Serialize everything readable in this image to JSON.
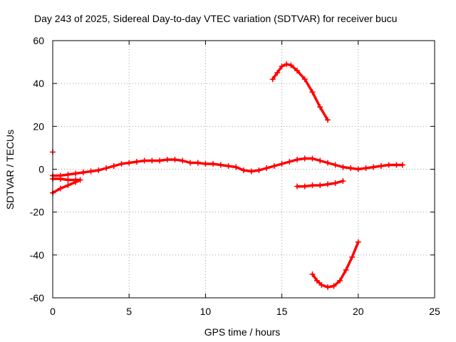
{
  "chart_data": {
    "type": "scatter",
    "title": "Day 243 of 2025, Sidereal Day-to-day VTEC variation (SDTVAR) for receiver bucu",
    "xlabel": "GPS time / hours",
    "ylabel": "SDTVAR / TECUs",
    "xlim": [
      0,
      25
    ],
    "ylim": [
      -60,
      60
    ],
    "xticks": [
      0,
      5,
      10,
      15,
      20,
      25
    ],
    "yticks": [
      -60,
      -40,
      -20,
      0,
      20,
      40,
      60
    ],
    "xtick_labels": [
      "0",
      "5",
      "10",
      "15",
      "20",
      "25"
    ],
    "ytick_labels": [
      "-60",
      "-40",
      "-20",
      "0",
      "20",
      "40",
      "60"
    ],
    "grid": true,
    "legend": "none",
    "marker_color": "#ff0000",
    "series": [
      {
        "name": "main band",
        "points": [
          [
            0.0,
            -3
          ],
          [
            0.5,
            -3
          ],
          [
            1.0,
            -2.5
          ],
          [
            1.5,
            -2
          ],
          [
            2.0,
            -1.5
          ],
          [
            2.5,
            -1
          ],
          [
            3.0,
            -0.5
          ],
          [
            3.5,
            0.5
          ],
          [
            4.0,
            1.5
          ],
          [
            4.5,
            2.5
          ],
          [
            5.0,
            3
          ],
          [
            5.5,
            3.5
          ],
          [
            6.0,
            4
          ],
          [
            6.5,
            4
          ],
          [
            7.0,
            4
          ],
          [
            7.5,
            4.5
          ],
          [
            8.0,
            4.5
          ],
          [
            8.5,
            4
          ],
          [
            9.0,
            3
          ],
          [
            9.5,
            3
          ],
          [
            10.0,
            2.5
          ],
          [
            10.5,
            2.5
          ],
          [
            11.0,
            2
          ],
          [
            11.5,
            1.5
          ],
          [
            12.0,
            1
          ],
          [
            12.5,
            -0.5
          ],
          [
            13.0,
            -1
          ],
          [
            13.5,
            -0.5
          ],
          [
            14.0,
            0.5
          ],
          [
            14.5,
            1.5
          ],
          [
            15.0,
            2.5
          ],
          [
            15.5,
            3.5
          ],
          [
            16.0,
            4.5
          ],
          [
            16.5,
            5
          ],
          [
            17.0,
            5
          ],
          [
            17.5,
            4
          ],
          [
            18.0,
            3
          ],
          [
            18.5,
            2
          ],
          [
            19.0,
            1
          ],
          [
            19.5,
            0.5
          ],
          [
            20.0,
            0
          ],
          [
            20.5,
            0.5
          ],
          [
            21.0,
            1
          ],
          [
            21.5,
            1.5
          ],
          [
            22.0,
            2
          ],
          [
            22.5,
            2
          ],
          [
            22.9,
            2
          ]
        ]
      },
      {
        "name": "early low branch",
        "points": [
          [
            0.0,
            -11
          ],
          [
            0.5,
            -9
          ],
          [
            1.0,
            -7.5
          ],
          [
            1.5,
            -6
          ],
          [
            1.8,
            -5
          ],
          [
            1.5,
            -5
          ],
          [
            1.0,
            -5
          ],
          [
            0.5,
            -4.5
          ],
          [
            0.0,
            -4.5
          ]
        ]
      },
      {
        "name": "isolated point",
        "points": [
          [
            0.0,
            8
          ]
        ]
      },
      {
        "name": "upper arc",
        "points": [
          [
            14.4,
            42
          ],
          [
            14.7,
            45
          ],
          [
            15.0,
            48
          ],
          [
            15.3,
            49
          ],
          [
            15.6,
            48.5
          ],
          [
            16.0,
            46
          ],
          [
            16.5,
            42
          ],
          [
            17.0,
            36
          ],
          [
            17.5,
            29
          ],
          [
            18.0,
            23
          ]
        ]
      },
      {
        "name": "middle segment",
        "points": [
          [
            16.0,
            -8
          ],
          [
            16.5,
            -8
          ],
          [
            17.0,
            -7.5
          ],
          [
            17.5,
            -7.5
          ],
          [
            18.0,
            -7
          ],
          [
            18.5,
            -6.5
          ],
          [
            19.0,
            -5.5
          ]
        ]
      },
      {
        "name": "lower arc",
        "points": [
          [
            17.0,
            -49
          ],
          [
            17.3,
            -52
          ],
          [
            17.6,
            -54
          ],
          [
            18.0,
            -55
          ],
          [
            18.4,
            -54.5
          ],
          [
            18.8,
            -52
          ],
          [
            19.2,
            -47
          ],
          [
            19.6,
            -41
          ],
          [
            20.0,
            -34
          ]
        ]
      }
    ]
  }
}
